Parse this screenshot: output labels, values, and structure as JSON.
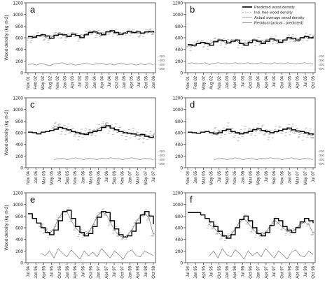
{
  "legend": {
    "placement": "top-right of panel b",
    "entries": [
      {
        "label": "Predicted wood density",
        "style": "thick-black-line"
      },
      {
        "label": "Ind. tree wood density",
        "style": "light-grey-dashed"
      },
      {
        "label": "Actual average wood density",
        "style": "thin-grey-line"
      },
      {
        "label": "Residual (actual - predicted)",
        "style": "thin-grey-line"
      }
    ]
  },
  "colors": {
    "predicted": "#000000",
    "individual": "#b8b8b8",
    "actual": "#8a8a8a",
    "residual": "#7a7a7a",
    "axis": "#333333"
  },
  "chart_data": [
    {
      "type": "line",
      "panel": "a",
      "ylabel": "Wood density (kg m-3)",
      "ylim": [
        0,
        1200
      ],
      "yticks": [
        "0",
        "200",
        "400",
        "600",
        "800",
        "1000",
        "1200"
      ],
      "residual_ticks": [
        "-200",
        "-300",
        "-400",
        "-500"
      ],
      "xticks": [
        "Nov 01",
        "Feb 02",
        "May 02",
        "Aug 02",
        "Nov 02",
        "Jan 03",
        "Apr 03",
        "Jul 03",
        "Oct 03",
        "Jan 04",
        "Apr 04",
        "Jul 04",
        "Oct 04",
        "Jan 05",
        "Apr 05",
        "Jul 05",
        "Oct 05",
        "Jan 06"
      ],
      "predicted": [
        620,
        610,
        640,
        650,
        630,
        590,
        640,
        660,
        650,
        620,
        660,
        640,
        600,
        650,
        690,
        700,
        680,
        650,
        700,
        720,
        690,
        660,
        680,
        710,
        690,
        700,
        680,
        700,
        710,
        690
      ],
      "individual_mean": [
        600,
        590,
        630,
        640,
        610,
        580,
        640,
        670,
        650,
        610,
        650,
        660,
        610,
        640,
        690,
        710,
        670,
        640,
        690,
        720,
        680,
        650,
        670,
        710,
        680,
        690,
        660,
        690,
        700,
        680
      ],
      "individual_spread": 70,
      "residual": [
        140,
        150,
        130,
        160,
        140,
        120,
        150,
        160,
        170,
        140,
        150,
        130,
        140,
        160,
        150,
        140,
        150,
        160,
        140,
        150,
        130,
        160,
        150,
        140,
        150,
        130,
        150,
        140,
        150,
        140
      ]
    },
    {
      "type": "line",
      "panel": "b",
      "ylabel": "",
      "ylim": [
        0,
        1200
      ],
      "yticks": [
        "0",
        "200",
        "400",
        "600",
        "800",
        "1000",
        "1200"
      ],
      "residual_ticks": [
        "-200",
        "-300",
        "-400",
        "-500"
      ],
      "xticks": [
        "Nov 01",
        "Feb 02",
        "May 02",
        "Aug 02",
        "Nov 02",
        "Jan 03",
        "Apr 03",
        "Jul 03",
        "Oct 03",
        "Jan 04",
        "Apr 04",
        "Jul 04",
        "Oct 04",
        "Jan 05",
        "Apr 05",
        "Jul 05",
        "Oct 05"
      ],
      "predicted": [
        480,
        470,
        500,
        520,
        500,
        470,
        530,
        560,
        550,
        510,
        540,
        560,
        500,
        470,
        520,
        560,
        540,
        500,
        540,
        580,
        560,
        520,
        560,
        600,
        590,
        560,
        600,
        620,
        600,
        620
      ],
      "individual_mean": [
        470,
        460,
        490,
        520,
        500,
        480,
        540,
        560,
        550,
        500,
        530,
        560,
        510,
        480,
        520,
        560,
        540,
        500,
        550,
        580,
        560,
        520,
        550,
        600,
        580,
        550,
        590,
        620,
        590,
        610
      ],
      "individual_spread": 80,
      "residual": [
        160,
        170,
        150,
        160,
        170,
        140,
        160,
        170,
        160,
        150,
        160,
        170,
        150,
        160,
        170,
        150,
        160,
        170,
        160,
        150,
        170,
        160,
        150,
        170,
        160,
        150,
        160,
        170,
        160,
        150
      ]
    },
    {
      "type": "line",
      "panel": "c",
      "ylabel": "Wood density (kg m-3)",
      "ylim": [
        0,
        1200
      ],
      "yticks": [
        "0",
        "200",
        "400",
        "600",
        "800",
        "1000",
        "1200"
      ],
      "residual_ticks": [
        "-200",
        "-300",
        "-400",
        "-500"
      ],
      "xticks": [
        "Nov 04",
        "Jan 05",
        "Mar 05",
        "May 05",
        "Jul 05",
        "Sep 05",
        "Nov 05",
        "Jan 06",
        "Mar 06",
        "May 06",
        "Jul 06",
        "Sep 06",
        "Nov 06",
        "Jan 07",
        "Mar 07",
        "May 07",
        "Jul 07"
      ],
      "predicted": [
        610,
        600,
        580,
        610,
        620,
        640,
        660,
        690,
        670,
        650,
        620,
        600,
        580,
        570,
        600,
        620,
        640,
        690,
        720,
        680,
        650,
        620,
        600,
        590,
        580,
        560,
        570,
        540,
        520,
        550
      ],
      "individual_mean": [
        null,
        null,
        null,
        null,
        null,
        null,
        700,
        720,
        680,
        650,
        620,
        600,
        590,
        580,
        610,
        630,
        650,
        700,
        740,
        690,
        660,
        630,
        610,
        590,
        580,
        560,
        560,
        540,
        530,
        550
      ],
      "individual_spread": 110,
      "residual": [
        null,
        null,
        null,
        null,
        null,
        null,
        140,
        150,
        160,
        140,
        150,
        170,
        150,
        140,
        160,
        150,
        140,
        160,
        150,
        170,
        160,
        150,
        140,
        160,
        170,
        150,
        140,
        160,
        150,
        140
      ]
    },
    {
      "type": "line",
      "panel": "d",
      "ylabel": "",
      "ylim": [
        0,
        1200
      ],
      "yticks": [
        "0",
        "200",
        "400",
        "600",
        "800",
        "1000",
        "1200"
      ],
      "residual_ticks": [
        "-200",
        "-300",
        "-400",
        "-500"
      ],
      "xticks": [
        "Nov 04",
        "Jan 05",
        "Mar 05",
        "May 05",
        "Jul 05",
        "Sep 05",
        "Nov 05",
        "Jan 06",
        "Mar 06",
        "May 06",
        "Jul 06",
        "Sep 06",
        "Nov 06",
        "Jan 07",
        "Mar 07",
        "May 07",
        "Jul 07"
      ],
      "predicted": [
        610,
        600,
        590,
        610,
        620,
        600,
        580,
        600,
        640,
        660,
        620,
        600,
        580,
        600,
        620,
        650,
        670,
        640,
        620,
        600,
        620,
        640,
        660,
        680,
        650,
        630,
        620,
        600,
        580,
        560
      ],
      "individual_mean": [
        null,
        null,
        null,
        null,
        null,
        null,
        600,
        610,
        630,
        660,
        610,
        590,
        580,
        600,
        620,
        650,
        660,
        640,
        610,
        590,
        610,
        630,
        650,
        670,
        640,
        620,
        600,
        590,
        570,
        550
      ],
      "individual_spread": 120,
      "residual": [
        null,
        null,
        null,
        null,
        null,
        null,
        140,
        150,
        160,
        140,
        150,
        170,
        150,
        140,
        160,
        150,
        140,
        160,
        150,
        170,
        160,
        150,
        140,
        160,
        170,
        150,
        140,
        160,
        150,
        140
      ]
    },
    {
      "type": "line",
      "panel": "e",
      "ylabel": "Wood density (kg m-3)",
      "ylim": [
        0,
        1200
      ],
      "yticks": [
        "0",
        "200",
        "400",
        "600",
        "800",
        "1000",
        "1200"
      ],
      "residual_ticks": [],
      "xticks": [
        "Jul 94",
        "Jan 95",
        "Apr 95",
        "Jul 95",
        "Oct 95",
        "Jan 96",
        "Apr 96",
        "Jul 96",
        "Oct 96",
        "Jan 97",
        "Apr 97",
        "Jul 97",
        "Oct 97",
        "Jan 98",
        "Apr 98",
        "Jul 98",
        "Oct 98"
      ],
      "predicted": [
        840,
        760,
        680,
        600,
        520,
        480,
        560,
        720,
        880,
        900,
        760,
        620,
        520,
        460,
        500,
        620,
        780,
        880,
        860,
        720,
        580,
        480,
        440,
        460,
        540,
        680,
        820,
        880,
        800,
        660
      ],
      "individual_mean": [
        null,
        null,
        null,
        640,
        560,
        500,
        580,
        760,
        860,
        880,
        720,
        600,
        520,
        470,
        520,
        640,
        800,
        870,
        840,
        700,
        560,
        470,
        430,
        470,
        560,
        700,
        800,
        860,
        760,
        480
      ],
      "individual_spread": 70,
      "residual": [
        null,
        null,
        null,
        160,
        120,
        200,
        80,
        240,
        160,
        100,
        220,
        140,
        60,
        200,
        120,
        180,
        100,
        240,
        160,
        80,
        200,
        140,
        60,
        180,
        220,
        120,
        100,
        200,
        160,
        120
      ]
    },
    {
      "type": "line",
      "panel": "f",
      "ylabel": "",
      "ylim": [
        0,
        1200
      ],
      "yticks": [
        "0",
        "200",
        "400",
        "600",
        "800",
        "1000",
        "1200"
      ],
      "residual_ticks": [],
      "xticks": [
        "Jul 94",
        "Jan 95",
        "Apr 95",
        "Jul 95",
        "Oct 95",
        "Jan 96",
        "Apr 96",
        "Jul 96",
        "Oct 96",
        "Jan 97",
        "Apr 97",
        "Jul 97",
        "Oct 97",
        "Jan 98",
        "Apr 98",
        "Jul 98",
        "Oct 98"
      ],
      "predicted": [
        860,
        860,
        860,
        820,
        760,
        700,
        620,
        540,
        460,
        420,
        480,
        600,
        740,
        800,
        720,
        600,
        500,
        460,
        520,
        640,
        760,
        720,
        620,
        560,
        520,
        600,
        700,
        760,
        720,
        680
      ],
      "individual_mean": [
        null,
        null,
        null,
        null,
        null,
        660,
        600,
        520,
        460,
        430,
        480,
        580,
        700,
        760,
        680,
        580,
        500,
        470,
        520,
        620,
        720,
        680,
        600,
        540,
        520,
        580,
        660,
        700,
        660,
        500
      ],
      "individual_spread": 70,
      "residual": [
        null,
        null,
        null,
        null,
        null,
        120,
        200,
        80,
        240,
        140,
        100,
        220,
        160,
        60,
        200,
        120,
        180,
        100,
        240,
        160,
        80,
        200,
        140,
        60,
        180,
        220,
        120,
        100,
        200,
        140
      ]
    }
  ],
  "panel_letters": [
    "a",
    "b",
    "c",
    "d",
    "e",
    "f"
  ]
}
